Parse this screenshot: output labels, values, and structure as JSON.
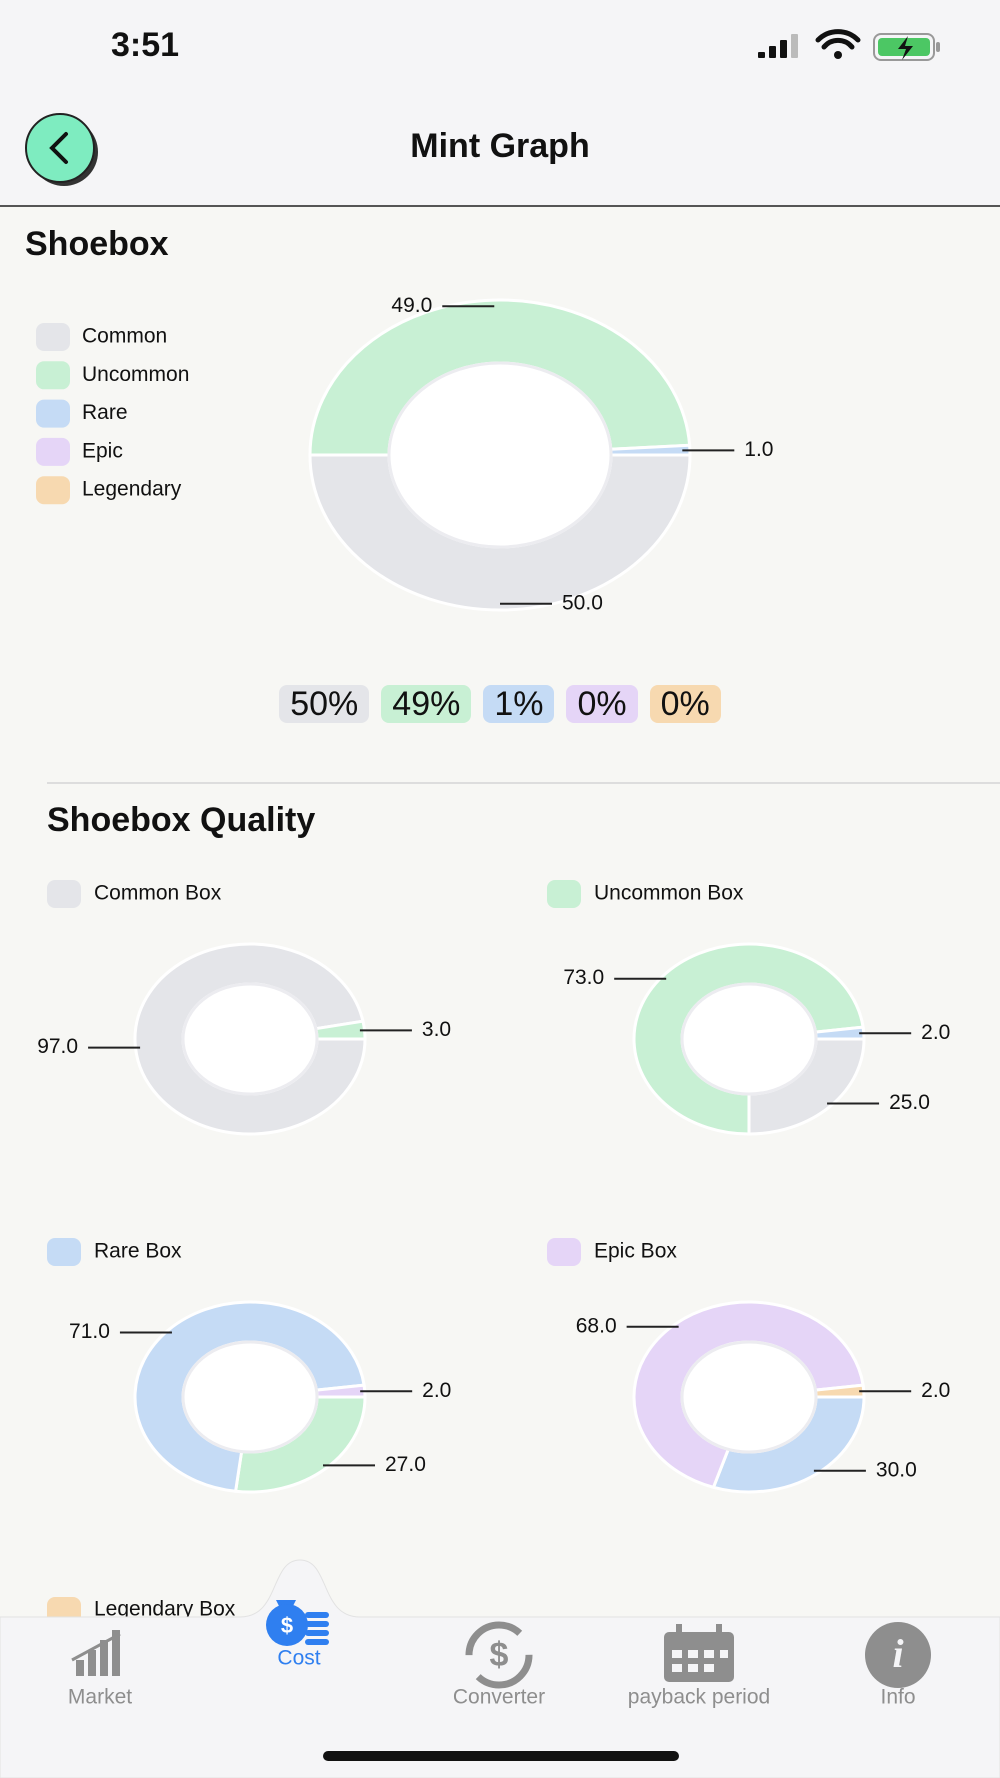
{
  "status_bar": {
    "time": "3:51"
  },
  "header": {
    "title": "Mint Graph"
  },
  "chart_data": [
    {
      "type": "donut",
      "title": "Shoebox",
      "categories": [
        "Common",
        "Uncommon",
        "Rare",
        "Epic",
        "Legendary"
      ],
      "values": [
        50,
        49,
        1,
        0,
        0
      ],
      "value_labels": [
        "50.0",
        "49.0",
        "1.0",
        null,
        null
      ],
      "colors": [
        "#e4e5e9",
        "#c8f0d4",
        "#c5dbf5",
        "#e5d5f7",
        "#f7d9b0"
      ],
      "legend": "left",
      "badges": [
        "50%",
        "49%",
        "1%",
        "0%",
        "0%"
      ]
    },
    {
      "type": "donut",
      "title": "Common Box",
      "color": "#e4e5e9",
      "values": [
        97,
        3
      ],
      "value_labels": [
        "97.0",
        "3.0"
      ],
      "colors": [
        "#e4e5e9",
        "#c8f0d4"
      ]
    },
    {
      "type": "donut",
      "title": "Uncommon Box",
      "color": "#c8f0d4",
      "values": [
        25,
        73,
        2
      ],
      "value_labels": [
        "25.0",
        "73.0",
        "2.0"
      ],
      "colors": [
        "#e4e5e9",
        "#c8f0d4",
        "#c5dbf5"
      ]
    },
    {
      "type": "donut",
      "title": "Rare Box",
      "color": "#c5dbf5",
      "values": [
        27,
        71,
        2
      ],
      "value_labels": [
        "27.0",
        "71.0",
        "2.0"
      ],
      "colors": [
        "#c8f0d4",
        "#c5dbf5",
        "#e5d5f7"
      ]
    },
    {
      "type": "donut",
      "title": "Epic Box",
      "color": "#e5d5f7",
      "values": [
        30,
        68,
        2
      ],
      "value_labels": [
        "30.0",
        "68.0",
        "2.0"
      ],
      "colors": [
        "#c5dbf5",
        "#e5d5f7",
        "#f7d9b0"
      ]
    }
  ],
  "section_title": "Shoebox Quality",
  "legendary_box": {
    "title": "Legendary Box",
    "color": "#f7d9b0"
  },
  "nav": {
    "items": [
      "Market",
      "Cost",
      "Converter",
      "payback period",
      "Info"
    ]
  }
}
